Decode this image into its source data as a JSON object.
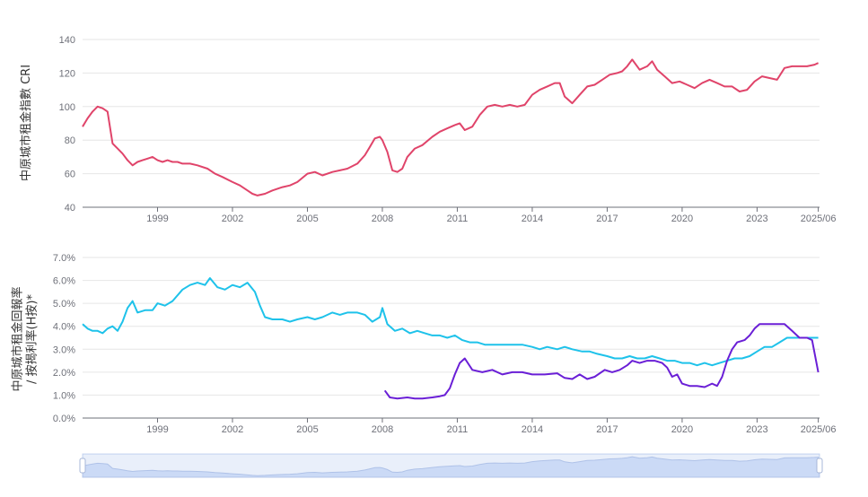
{
  "colors": {
    "cri": "#e0446a",
    "yield_a": "#1ec2ea",
    "yield_b": "#6a1fd6",
    "slider_fill": "#dbe6fb",
    "slider_border": "#c9d7f2"
  },
  "chart_data": [
    {
      "type": "line",
      "ylabel": "中原城市租金指數 CRI",
      "ylim": [
        40,
        140
      ],
      "yticks": [
        "40",
        "60",
        "80",
        "100",
        "120",
        "140"
      ],
      "xticks": [
        "1999",
        "2002",
        "2005",
        "2008",
        "2011",
        "2014",
        "2017",
        "2020",
        "2023",
        "2025/06"
      ],
      "x_range": [
        1996.0,
        2025.5
      ],
      "grid": true,
      "series": [
        {
          "x": [
            1996.0,
            1996.2,
            1996.4,
            1996.6,
            1996.8,
            1997.0,
            1997.2,
            1997.4,
            1997.6,
            1997.8,
            1998.0,
            1998.2,
            1998.4,
            1998.6,
            1998.8,
            1999.0,
            1999.2,
            1999.4,
            1999.6,
            1999.8,
            2000.0,
            2000.3,
            2000.6,
            2001.0,
            2001.3,
            2001.6,
            2002.0,
            2002.3,
            2002.6,
            2002.8,
            2003.0,
            2003.3,
            2003.6,
            2004.0,
            2004.3,
            2004.6,
            2005.0,
            2005.3,
            2005.6,
            2006.0,
            2006.3,
            2006.6,
            2007.0,
            2007.3,
            2007.5,
            2007.7,
            2007.9,
            2008.0,
            2008.2,
            2008.4,
            2008.6,
            2008.8,
            2009.0,
            2009.3,
            2009.6,
            2010.0,
            2010.3,
            2010.6,
            2010.9,
            2011.1,
            2011.3,
            2011.6,
            2011.9,
            2012.2,
            2012.5,
            2012.8,
            2013.1,
            2013.4,
            2013.7,
            2014.0,
            2014.3,
            2014.6,
            2014.9,
            2015.1,
            2015.3,
            2015.6,
            2015.9,
            2016.2,
            2016.5,
            2016.8,
            2017.1,
            2017.4,
            2017.6,
            2017.8,
            2018.0,
            2018.3,
            2018.6,
            2018.8,
            2019.0,
            2019.3,
            2019.6,
            2019.9,
            2020.2,
            2020.5,
            2020.8,
            2021.1,
            2021.4,
            2021.7,
            2022.0,
            2022.3,
            2022.6,
            2022.9,
            2023.2,
            2023.5,
            2023.8,
            2024.1,
            2024.4,
            2024.7,
            2025.0,
            2025.3,
            2025.45
          ],
          "y": [
            88,
            93,
            97,
            100,
            99,
            97,
            78,
            75,
            72,
            68,
            65,
            67,
            68,
            69,
            70,
            68,
            67,
            68,
            67,
            67,
            66,
            66,
            65,
            63,
            60,
            58,
            55,
            53,
            50,
            48,
            47,
            48,
            50,
            52,
            53,
            55,
            60,
            61,
            59,
            61,
            62,
            63,
            66,
            71,
            76,
            81,
            82,
            80,
            73,
            62,
            61,
            63,
            70,
            75,
            77,
            82,
            85,
            87,
            89,
            90,
            86,
            88,
            95,
            100,
            101,
            100,
            101,
            100,
            101,
            107,
            110,
            112,
            114,
            114,
            106,
            102,
            107,
            112,
            113,
            116,
            119,
            120,
            121,
            124,
            128,
            122,
            124,
            127,
            122,
            118,
            114,
            115,
            113,
            111,
            114,
            116,
            114,
            112,
            112,
            109,
            110,
            115,
            118,
            117,
            116,
            123,
            124,
            124,
            124,
            125,
            126
          ]
        }
      ]
    },
    {
      "type": "line",
      "ylabel": "中原城市租金回報率 / 按揭利率(H按)*",
      "ylim": [
        0,
        7
      ],
      "yticks": [
        "0.0%",
        "1.0%",
        "2.0%",
        "3.0%",
        "4.0%",
        "5.0%",
        "6.0%",
        "7.0%"
      ],
      "xticks": [
        "1999",
        "2002",
        "2005",
        "2008",
        "2011",
        "2014",
        "2017",
        "2020",
        "2023",
        "2025/06"
      ],
      "x_range": [
        1996.0,
        2025.5
      ],
      "grid": true,
      "series": [
        {
          "x": [
            1996.0,
            1996.2,
            1996.4,
            1996.6,
            1996.8,
            1997.0,
            1997.2,
            1997.4,
            1997.6,
            1997.8,
            1998.0,
            1998.2,
            1998.5,
            1998.8,
            1999.0,
            1999.3,
            1999.6,
            2000.0,
            2000.3,
            2000.6,
            2000.9,
            2001.1,
            2001.4,
            2001.7,
            2002.0,
            2002.3,
            2002.6,
            2002.9,
            2003.1,
            2003.3,
            2003.6,
            2004.0,
            2004.3,
            2004.6,
            2005.0,
            2005.3,
            2005.6,
            2006.0,
            2006.3,
            2006.6,
            2007.0,
            2007.3,
            2007.6,
            2007.9,
            2008.0,
            2008.2,
            2008.5,
            2008.8,
            2009.1,
            2009.4,
            2009.7,
            2010.0,
            2010.3,
            2010.6,
            2010.9,
            2011.2,
            2011.5,
            2011.8,
            2012.1,
            2012.4,
            2012.7,
            2013.0,
            2013.3,
            2013.6,
            2014.0,
            2014.3,
            2014.6,
            2015.0,
            2015.3,
            2015.6,
            2016.0,
            2016.3,
            2016.6,
            2017.0,
            2017.3,
            2017.6,
            2017.9,
            2018.2,
            2018.5,
            2018.8,
            2019.1,
            2019.4,
            2019.7,
            2020.0,
            2020.3,
            2020.6,
            2020.9,
            2021.2,
            2021.5,
            2021.8,
            2022.1,
            2022.4,
            2022.7,
            2023.0,
            2023.3,
            2023.6,
            2023.9,
            2024.2,
            2024.5,
            2024.8,
            2025.1,
            2025.45
          ],
          "y": [
            4.1,
            3.9,
            3.8,
            3.8,
            3.7,
            3.9,
            4.0,
            3.8,
            4.2,
            4.8,
            5.1,
            4.6,
            4.7,
            4.7,
            5.0,
            4.9,
            5.1,
            5.6,
            5.8,
            5.9,
            5.8,
            6.1,
            5.7,
            5.6,
            5.8,
            5.7,
            5.9,
            5.5,
            4.9,
            4.4,
            4.3,
            4.3,
            4.2,
            4.3,
            4.4,
            4.3,
            4.4,
            4.6,
            4.5,
            4.6,
            4.6,
            4.5,
            4.2,
            4.4,
            4.8,
            4.1,
            3.8,
            3.9,
            3.7,
            3.8,
            3.7,
            3.6,
            3.6,
            3.5,
            3.6,
            3.4,
            3.3,
            3.3,
            3.2,
            3.2,
            3.2,
            3.2,
            3.2,
            3.2,
            3.1,
            3.0,
            3.1,
            3.0,
            3.1,
            3.0,
            2.9,
            2.9,
            2.8,
            2.7,
            2.6,
            2.6,
            2.7,
            2.6,
            2.6,
            2.7,
            2.6,
            2.5,
            2.5,
            2.4,
            2.4,
            2.3,
            2.4,
            2.3,
            2.4,
            2.5,
            2.6,
            2.6,
            2.7,
            2.9,
            3.1,
            3.1,
            3.3,
            3.5,
            3.5,
            3.5,
            3.5,
            3.5
          ]
        },
        {
          "x": [
            2008.1,
            2008.3,
            2008.6,
            2009.0,
            2009.3,
            2009.6,
            2010.0,
            2010.3,
            2010.5,
            2010.7,
            2010.9,
            2011.1,
            2011.3,
            2011.6,
            2012.0,
            2012.4,
            2012.8,
            2013.2,
            2013.6,
            2014.0,
            2014.5,
            2015.0,
            2015.3,
            2015.6,
            2015.9,
            2016.2,
            2016.5,
            2016.9,
            2017.2,
            2017.5,
            2017.8,
            2018.0,
            2018.3,
            2018.6,
            2018.9,
            2019.2,
            2019.4,
            2019.6,
            2019.8,
            2020.0,
            2020.3,
            2020.6,
            2020.9,
            2021.2,
            2021.4,
            2021.6,
            2021.8,
            2022.0,
            2022.2,
            2022.5,
            2022.7,
            2022.9,
            2023.1,
            2023.4,
            2023.7,
            2023.9,
            2024.1,
            2024.4,
            2024.7,
            2025.0,
            2025.2,
            2025.45
          ],
          "y": [
            1.2,
            0.9,
            0.85,
            0.9,
            0.85,
            0.85,
            0.9,
            0.95,
            1.0,
            1.3,
            1.9,
            2.4,
            2.6,
            2.1,
            2.0,
            2.1,
            1.9,
            2.0,
            2.0,
            1.9,
            1.9,
            1.95,
            1.75,
            1.7,
            1.9,
            1.7,
            1.8,
            2.1,
            2.0,
            2.1,
            2.3,
            2.5,
            2.4,
            2.5,
            2.5,
            2.4,
            2.2,
            1.8,
            1.9,
            1.5,
            1.4,
            1.4,
            1.35,
            1.5,
            1.4,
            1.8,
            2.5,
            3.0,
            3.3,
            3.4,
            3.6,
            3.9,
            4.1,
            4.1,
            4.1,
            4.1,
            4.1,
            3.8,
            3.5,
            3.5,
            3.4,
            2.0
          ]
        }
      ]
    }
  ],
  "slider": {
    "start_fraction": 0,
    "end_fraction": 1
  }
}
